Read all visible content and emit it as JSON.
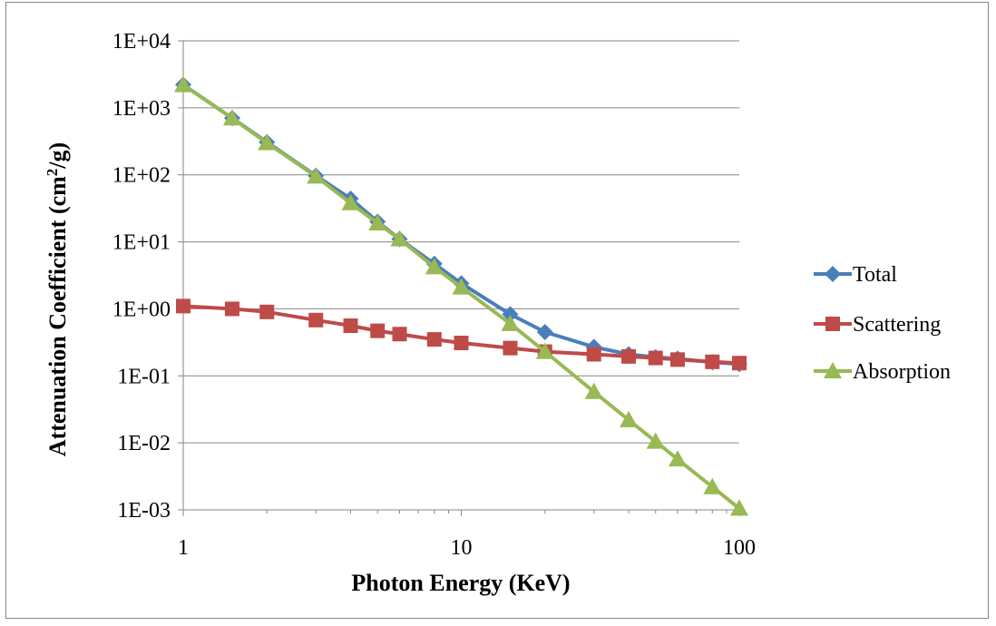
{
  "chart_data": {
    "type": "line",
    "title": "",
    "xlabel": "Photon Energy (KeV)",
    "ylabel_main": "Attenuation Coefficient (cm",
    "ylabel_sup": "2",
    "ylabel_tail": "/g)",
    "x_scale": "log",
    "y_scale": "log",
    "xlim": [
      1,
      100
    ],
    "ylim": [
      0.001,
      10000
    ],
    "x_ticks": [
      {
        "value": 1,
        "label": "1"
      },
      {
        "value": 10,
        "label": "10"
      },
      {
        "value": 100,
        "label": "100"
      }
    ],
    "y_ticks": [
      {
        "value": 10000,
        "label": "1E+04"
      },
      {
        "value": 1000,
        "label": "1E+03"
      },
      {
        "value": 100,
        "label": "1E+02"
      },
      {
        "value": 10,
        "label": "1E+01"
      },
      {
        "value": 1,
        "label": "1E+00"
      },
      {
        "value": 0.1,
        "label": "1E-01"
      },
      {
        "value": 0.01,
        "label": "1E-02"
      },
      {
        "value": 0.001,
        "label": "1E-03"
      }
    ],
    "grid": "horizontal major",
    "legend_position": "right",
    "x": [
      1,
      1.5,
      2,
      3,
      4,
      5,
      6,
      8,
      10,
      15,
      20,
      30,
      40,
      50,
      60,
      80,
      100
    ],
    "series": [
      {
        "name": "Total",
        "color": "#4A7EBB",
        "marker": "diamond",
        "values": [
          2210,
          703,
          307,
          97,
          44,
          20,
          11,
          4.7,
          2.4,
          0.83,
          0.45,
          0.27,
          0.21,
          0.19,
          0.18,
          0.16,
          0.15
        ]
      },
      {
        "name": "Scattering",
        "color": "#BE4B48",
        "marker": "square",
        "values": [
          1.1,
          1.0,
          0.9,
          0.68,
          0.56,
          0.47,
          0.42,
          0.35,
          0.31,
          0.26,
          0.23,
          0.21,
          0.195,
          0.185,
          0.175,
          0.162,
          0.155
        ]
      },
      {
        "name": "Absorption",
        "color": "#98B954",
        "marker": "triangle",
        "values": [
          2200,
          700,
          300,
          95,
          38,
          19,
          11,
          4.2,
          2.1,
          0.6,
          0.23,
          0.058,
          0.022,
          0.0105,
          0.0057,
          0.0022,
          0.00105
        ]
      }
    ]
  }
}
